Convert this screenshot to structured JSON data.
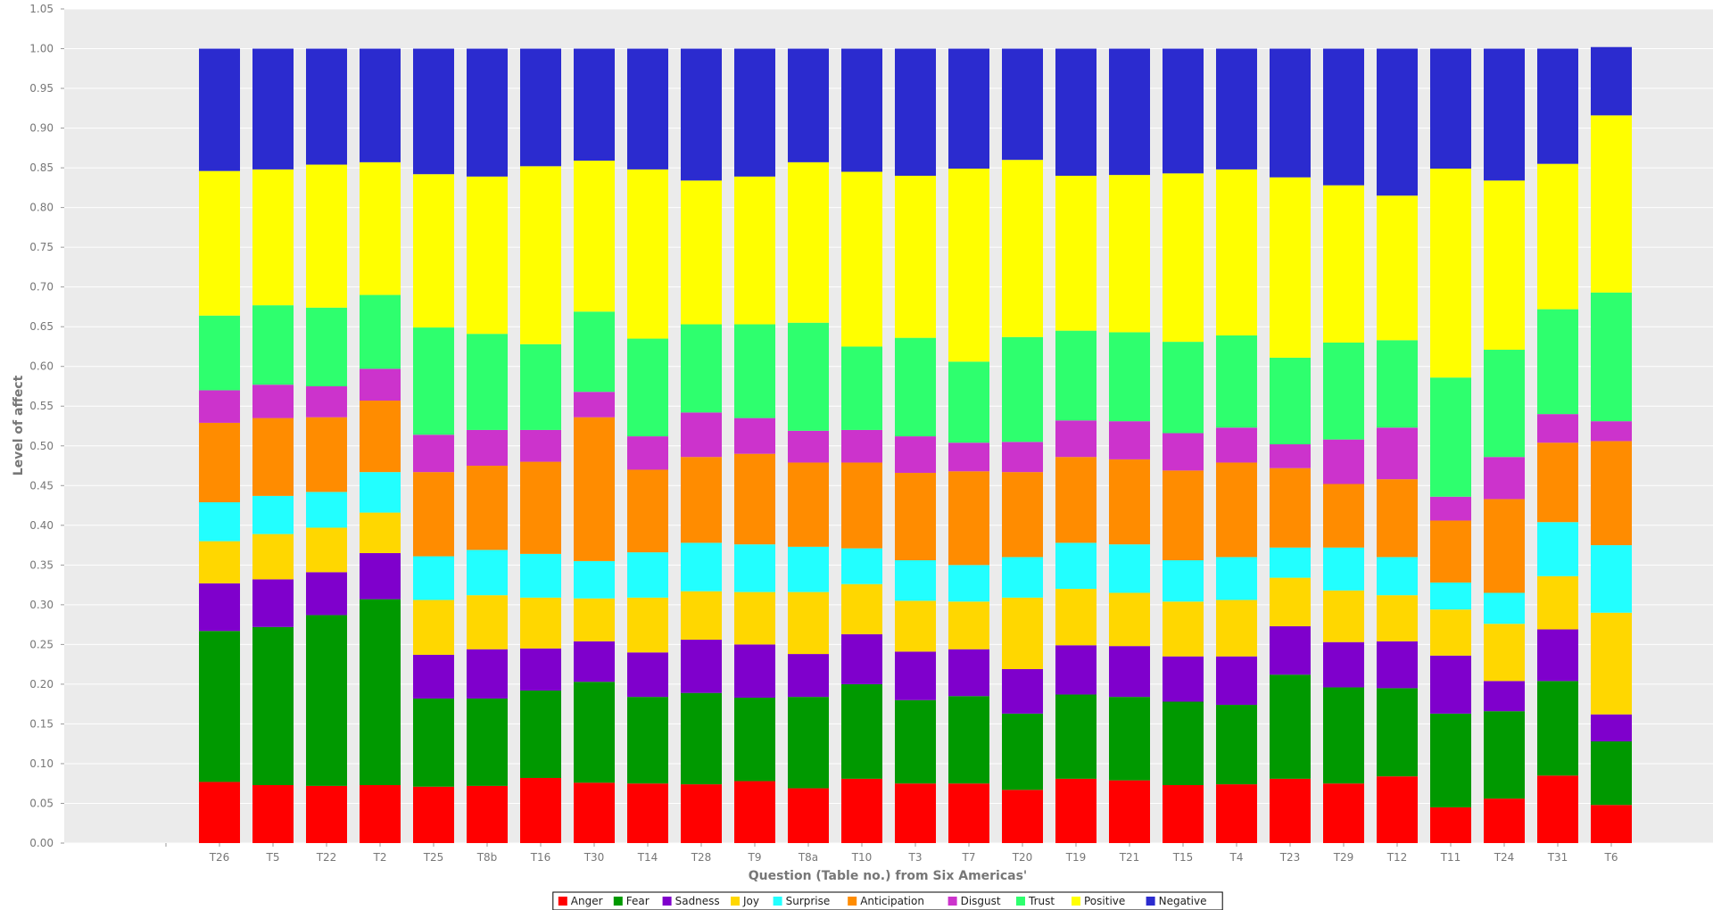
{
  "chart_data": {
    "type": "bar",
    "stacked": true,
    "xlabel": "Question (Table no.) from Six Americas'",
    "ylabel": "Level of affect",
    "ylim": [
      0,
      1.05
    ],
    "y_ticks": [
      "0.00",
      "0.05",
      "0.10",
      "0.15",
      "0.20",
      "0.25",
      "0.30",
      "0.35",
      "0.40",
      "0.45",
      "0.50",
      "0.55",
      "0.60",
      "0.65",
      "0.70",
      "0.75",
      "0.80",
      "0.85",
      "0.90",
      "0.95",
      "1.00",
      "1.05"
    ],
    "y_tick_values": [
      0,
      0.05,
      0.1,
      0.15,
      0.2,
      0.25,
      0.3,
      0.35,
      0.4,
      0.45,
      0.5,
      0.55,
      0.6,
      0.65,
      0.7,
      0.75,
      0.8,
      0.85,
      0.9,
      0.95,
      1.0,
      1.05
    ],
    "x_leading_tick": "",
    "categories": [
      "T26",
      "T5",
      "T22",
      "T2",
      "T25",
      "T8b",
      "T16",
      "T30",
      "T14",
      "T28",
      "T9",
      "T8a",
      "T10",
      "T3",
      "T7",
      "T20",
      "T19",
      "T21",
      "T15",
      "T4",
      "T23",
      "T29",
      "T12",
      "T11",
      "T24",
      "T31",
      "T6"
    ],
    "grid": true,
    "background": "#ebebeb",
    "legend_position": "bottom",
    "series": [
      {
        "name": "Anger",
        "color": "#ff0000",
        "values": [
          0.077,
          0.073,
          0.072,
          0.073,
          0.071,
          0.072,
          0.082,
          0.076,
          0.075,
          0.074,
          0.078,
          0.069,
          0.081,
          0.075,
          0.075,
          0.067,
          0.081,
          0.079,
          0.073,
          0.074,
          0.081,
          0.075,
          0.084,
          0.045,
          0.056,
          0.085,
          0.048
        ]
      },
      {
        "name": "Fear",
        "color": "#009900",
        "values": [
          0.19,
          0.199,
          0.215,
          0.234,
          0.111,
          0.11,
          0.11,
          0.127,
          0.109,
          0.115,
          0.105,
          0.115,
          0.119,
          0.105,
          0.11,
          0.096,
          0.106,
          0.105,
          0.105,
          0.1,
          0.131,
          0.121,
          0.111,
          0.118,
          0.11,
          0.119,
          0.08
        ]
      },
      {
        "name": "Sadness",
        "color": "#7f00cc",
        "values": [
          0.06,
          0.06,
          0.054,
          0.058,
          0.055,
          0.062,
          0.053,
          0.051,
          0.056,
          0.067,
          0.067,
          0.054,
          0.063,
          0.061,
          0.059,
          0.056,
          0.062,
          0.064,
          0.057,
          0.061,
          0.061,
          0.057,
          0.059,
          0.073,
          0.038,
          0.065,
          0.034
        ]
      },
      {
        "name": "Joy",
        "color": "#ffd700",
        "values": [
          0.053,
          0.057,
          0.056,
          0.051,
          0.069,
          0.068,
          0.064,
          0.054,
          0.069,
          0.061,
          0.066,
          0.078,
          0.063,
          0.064,
          0.06,
          0.09,
          0.071,
          0.067,
          0.069,
          0.071,
          0.061,
          0.065,
          0.058,
          0.058,
          0.072,
          0.067,
          0.128
        ]
      },
      {
        "name": "Surprise",
        "color": "#22ffff",
        "values": [
          0.049,
          0.048,
          0.045,
          0.051,
          0.055,
          0.057,
          0.055,
          0.047,
          0.057,
          0.061,
          0.06,
          0.057,
          0.045,
          0.051,
          0.046,
          0.051,
          0.058,
          0.061,
          0.052,
          0.054,
          0.038,
          0.054,
          0.048,
          0.034,
          0.039,
          0.068,
          0.085
        ]
      },
      {
        "name": "Anticipation",
        "color": "#ff8c00",
        "values": [
          0.1,
          0.098,
          0.094,
          0.09,
          0.106,
          0.106,
          0.116,
          0.181,
          0.104,
          0.108,
          0.114,
          0.106,
          0.108,
          0.11,
          0.118,
          0.107,
          0.108,
          0.107,
          0.113,
          0.119,
          0.1,
          0.08,
          0.098,
          0.078,
          0.118,
          0.1,
          0.131
        ]
      },
      {
        "name": "Disgust",
        "color": "#cc33cc",
        "values": [
          0.041,
          0.042,
          0.039,
          0.04,
          0.047,
          0.045,
          0.04,
          0.032,
          0.042,
          0.056,
          0.045,
          0.04,
          0.041,
          0.046,
          0.036,
          0.038,
          0.046,
          0.048,
          0.047,
          0.044,
          0.03,
          0.056,
          0.065,
          0.03,
          0.053,
          0.036,
          0.025
        ]
      },
      {
        "name": "Trust",
        "color": "#2eff6e",
        "values": [
          0.094,
          0.1,
          0.099,
          0.093,
          0.135,
          0.121,
          0.108,
          0.101,
          0.123,
          0.111,
          0.118,
          0.136,
          0.105,
          0.124,
          0.102,
          0.132,
          0.113,
          0.112,
          0.115,
          0.116,
          0.109,
          0.122,
          0.11,
          0.15,
          0.135,
          0.132,
          0.162
        ]
      },
      {
        "name": "Positive",
        "color": "#ffff00",
        "values": [
          0.182,
          0.171,
          0.18,
          0.167,
          0.193,
          0.198,
          0.224,
          0.19,
          0.213,
          0.181,
          0.186,
          0.202,
          0.22,
          0.204,
          0.243,
          0.223,
          0.195,
          0.198,
          0.212,
          0.209,
          0.227,
          0.198,
          0.182,
          0.263,
          0.213,
          0.183,
          0.223
        ]
      },
      {
        "name": "Negative",
        "color": "#2b2bcf",
        "values": [
          0.154,
          0.152,
          0.146,
          0.143,
          0.158,
          0.161,
          0.148,
          0.141,
          0.152,
          0.166,
          0.161,
          0.143,
          0.155,
          0.16,
          0.151,
          0.14,
          0.16,
          0.159,
          0.157,
          0.152,
          0.162,
          0.172,
          0.185,
          0.151,
          0.166,
          0.145,
          0.086
        ]
      }
    ]
  }
}
